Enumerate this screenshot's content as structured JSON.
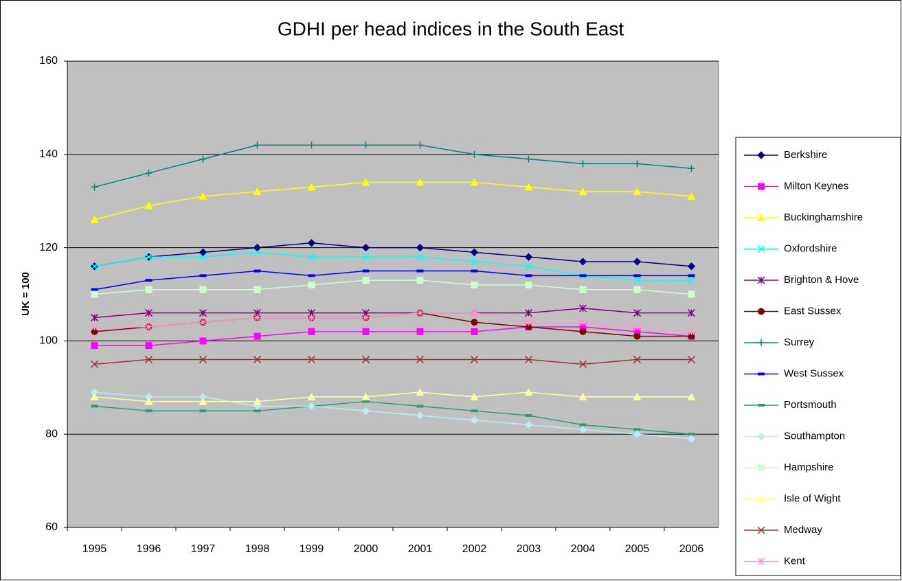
{
  "chart_data": {
    "type": "line",
    "title": "GDHI per head indices in the South East",
    "y_label": "UK = 100",
    "categories": [
      "1995",
      "1996",
      "1997",
      "1998",
      "1999",
      "2000",
      "2001",
      "2002",
      "2003",
      "2004",
      "2005",
      "2006"
    ],
    "ylim": [
      60,
      160
    ],
    "yticks": [
      60,
      80,
      100,
      120,
      140,
      160
    ],
    "grid": true,
    "legend": "right",
    "series": [
      {
        "name": "Berkshire",
        "color": "#000080",
        "marker": "diamond",
        "values": [
          116,
          118,
          119,
          120,
          121,
          120,
          120,
          119,
          118,
          117,
          117,
          116
        ]
      },
      {
        "name": "Milton Keynes",
        "color": "#ff00ff",
        "marker": "square",
        "values": [
          99,
          99,
          100,
          101,
          102,
          102,
          102,
          102,
          103,
          103,
          102,
          101
        ]
      },
      {
        "name": "Buckinghamshire",
        "color": "#ffff00",
        "marker": "triangle",
        "values": [
          126,
          129,
          131,
          132,
          133,
          134,
          134,
          134,
          133,
          132,
          132,
          131
        ]
      },
      {
        "name": "Oxfordshire",
        "color": "#00ffff",
        "marker": "x",
        "values": [
          116,
          118,
          118,
          119,
          118,
          118,
          118,
          117,
          116,
          114,
          113,
          113
        ]
      },
      {
        "name": "Brighton & Hove",
        "color": "#800080",
        "marker": "star",
        "values": [
          105,
          106,
          106,
          106,
          106,
          106,
          106,
          106,
          106,
          107,
          106,
          106
        ]
      },
      {
        "name": "East Sussex",
        "color": "#800000",
        "marker": "circle",
        "values": [
          102,
          103,
          104,
          105,
          105,
          105,
          106,
          104,
          103,
          102,
          101,
          101
        ]
      },
      {
        "name": "Surrey",
        "color": "#008080",
        "marker": "plus",
        "values": [
          133,
          136,
          139,
          142,
          142,
          142,
          142,
          140,
          139,
          138,
          138,
          137
        ]
      },
      {
        "name": "West Sussex",
        "color": "#0000ff",
        "marker": "dash",
        "values": [
          111,
          113,
          114,
          115,
          114,
          115,
          115,
          115,
          114,
          114,
          114,
          114
        ]
      },
      {
        "name": "Portsmouth",
        "color": "#2f9a78",
        "marker": "dash",
        "values": [
          86,
          85,
          85,
          85,
          86,
          87,
          86,
          85,
          84,
          82,
          81,
          80
        ]
      },
      {
        "name": "Southampton",
        "color": "#b8ecf8",
        "marker": "diamond",
        "values": [
          89,
          88,
          88,
          86,
          86,
          85,
          84,
          83,
          82,
          81,
          80,
          79
        ]
      },
      {
        "name": "Hampshire",
        "color": "#ccffcc",
        "marker": "square",
        "values": [
          110,
          111,
          111,
          111,
          112,
          113,
          113,
          112,
          112,
          111,
          111,
          110
        ]
      },
      {
        "name": "Isle of Wight",
        "color": "#ffff99",
        "marker": "triangle",
        "values": [
          88,
          87,
          87,
          87,
          88,
          88,
          89,
          88,
          89,
          88,
          88,
          88
        ]
      },
      {
        "name": "Medway",
        "color": "#993333",
        "marker": "x",
        "values": [
          95,
          96,
          96,
          96,
          96,
          96,
          96,
          96,
          96,
          95,
          96,
          96
        ]
      },
      {
        "name": "Kent",
        "color": "#ff99cc",
        "marker": "star",
        "values": [
          103,
          103,
          104,
          105,
          105,
          105,
          106,
          106,
          104,
          104,
          103,
          102
        ]
      }
    ]
  }
}
